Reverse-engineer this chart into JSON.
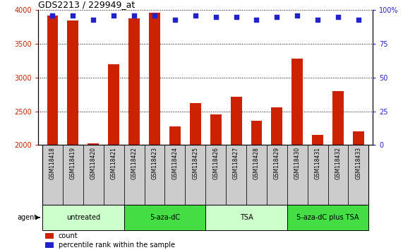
{
  "title": "GDS2213 / 229949_at",
  "categories": [
    "GSM118418",
    "GSM118419",
    "GSM118420",
    "GSM118421",
    "GSM118422",
    "GSM118423",
    "GSM118424",
    "GSM118425",
    "GSM118426",
    "GSM118427",
    "GSM118428",
    "GSM118429",
    "GSM118430",
    "GSM118431",
    "GSM118432",
    "GSM118433"
  ],
  "counts": [
    3920,
    3840,
    2020,
    3200,
    3880,
    3960,
    2280,
    2620,
    2450,
    2720,
    2360,
    2560,
    3280,
    2150,
    2800,
    2200
  ],
  "percentile_ranks": [
    96,
    96,
    93,
    96,
    96,
    96,
    93,
    96,
    95,
    95,
    93,
    95,
    96,
    93,
    95,
    93
  ],
  "bar_color": "#cc2200",
  "dot_color": "#2222cc",
  "ylim_left": [
    2000,
    4000
  ],
  "ylim_right": [
    0,
    100
  ],
  "yticks_left": [
    2000,
    2500,
    3000,
    3500,
    4000
  ],
  "yticks_right": [
    0,
    25,
    50,
    75,
    100
  ],
  "groups": [
    {
      "label": "untreated",
      "start": 0,
      "end": 4,
      "color": "#ccffcc"
    },
    {
      "label": "5-aza-dC",
      "start": 4,
      "end": 8,
      "color": "#44dd44"
    },
    {
      "label": "TSA",
      "start": 8,
      "end": 12,
      "color": "#ccffcc"
    },
    {
      "label": "5-aza-dC plus TSA",
      "start": 12,
      "end": 16,
      "color": "#44dd44"
    }
  ],
  "agent_label": "agent",
  "legend_count_label": "count",
  "legend_pct_label": "percentile rank within the sample",
  "background_color": "#ffffff",
  "tick_color_left": "#cc2200",
  "tick_color_right": "#2222cc",
  "bar_width": 0.55,
  "xticklabel_bg": "#cccccc"
}
